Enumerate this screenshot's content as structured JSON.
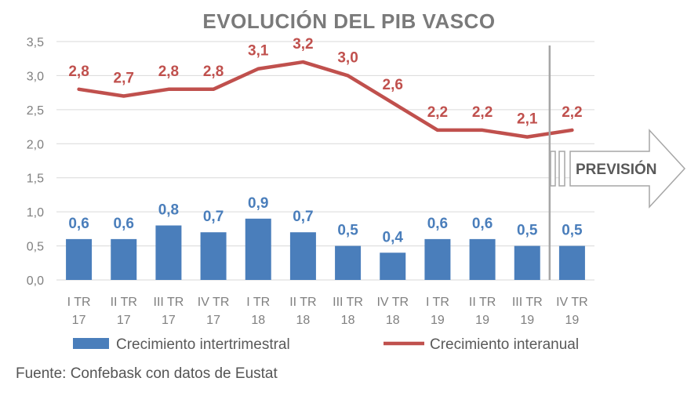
{
  "chart_data": {
    "type": "bar",
    "title": "EVOLUCIÓN DEL PIB VASCO",
    "categories": [
      [
        "I TR",
        "17"
      ],
      [
        "II TR",
        "17"
      ],
      [
        "III TR",
        "17"
      ],
      [
        "IV TR",
        "17"
      ],
      [
        "I TR",
        "18"
      ],
      [
        "II TR",
        "18"
      ],
      [
        "III TR",
        "18"
      ],
      [
        "IV TR",
        "18"
      ],
      [
        "I TR",
        "19"
      ],
      [
        "II TR",
        "19"
      ],
      [
        "III TR",
        "19"
      ],
      [
        "IV TR",
        "19"
      ]
    ],
    "series": [
      {
        "name": "Crecimiento intertrimestral",
        "type": "bar",
        "color": "#4a7ebb",
        "values": [
          0.6,
          0.6,
          0.8,
          0.7,
          0.9,
          0.7,
          0.5,
          0.4,
          0.6,
          0.6,
          0.5,
          0.5
        ],
        "labels": [
          "0,6",
          "0,6",
          "0,8",
          "0,7",
          "0,9",
          "0,7",
          "0,5",
          "0,4",
          "0,6",
          "0,6",
          "0,5",
          "0,5"
        ]
      },
      {
        "name": "Crecimiento interanual",
        "type": "line",
        "color": "#c0504d",
        "values": [
          2.8,
          2.7,
          2.8,
          2.8,
          3.1,
          3.2,
          3.0,
          2.6,
          2.2,
          2.2,
          2.1,
          2.2
        ],
        "labels": [
          "2,8",
          "2,7",
          "2,8",
          "2,8",
          "3,1",
          "3,2",
          "3,0",
          "2,6",
          "2,2",
          "2,2",
          "2,1",
          "2,2"
        ]
      }
    ],
    "ylim": [
      0,
      3.5
    ],
    "yticks": [
      "0,0",
      "0,5",
      "1,0",
      "1,5",
      "2,0",
      "2,5",
      "3,0",
      "3,5"
    ],
    "grid": true,
    "legend_position": "bottom",
    "annotation": "PREVISIÓN",
    "forecast_starts_after_index": 10
  },
  "source": "Fuente: Confebask con datos de Eustat",
  "colors": {
    "grid": "#d9d9d9",
    "axis_text": "#7f7f7f",
    "divider": "#a6a6a6",
    "arrow_stroke": "#a6a6a6",
    "annotation_text": "#595959"
  }
}
